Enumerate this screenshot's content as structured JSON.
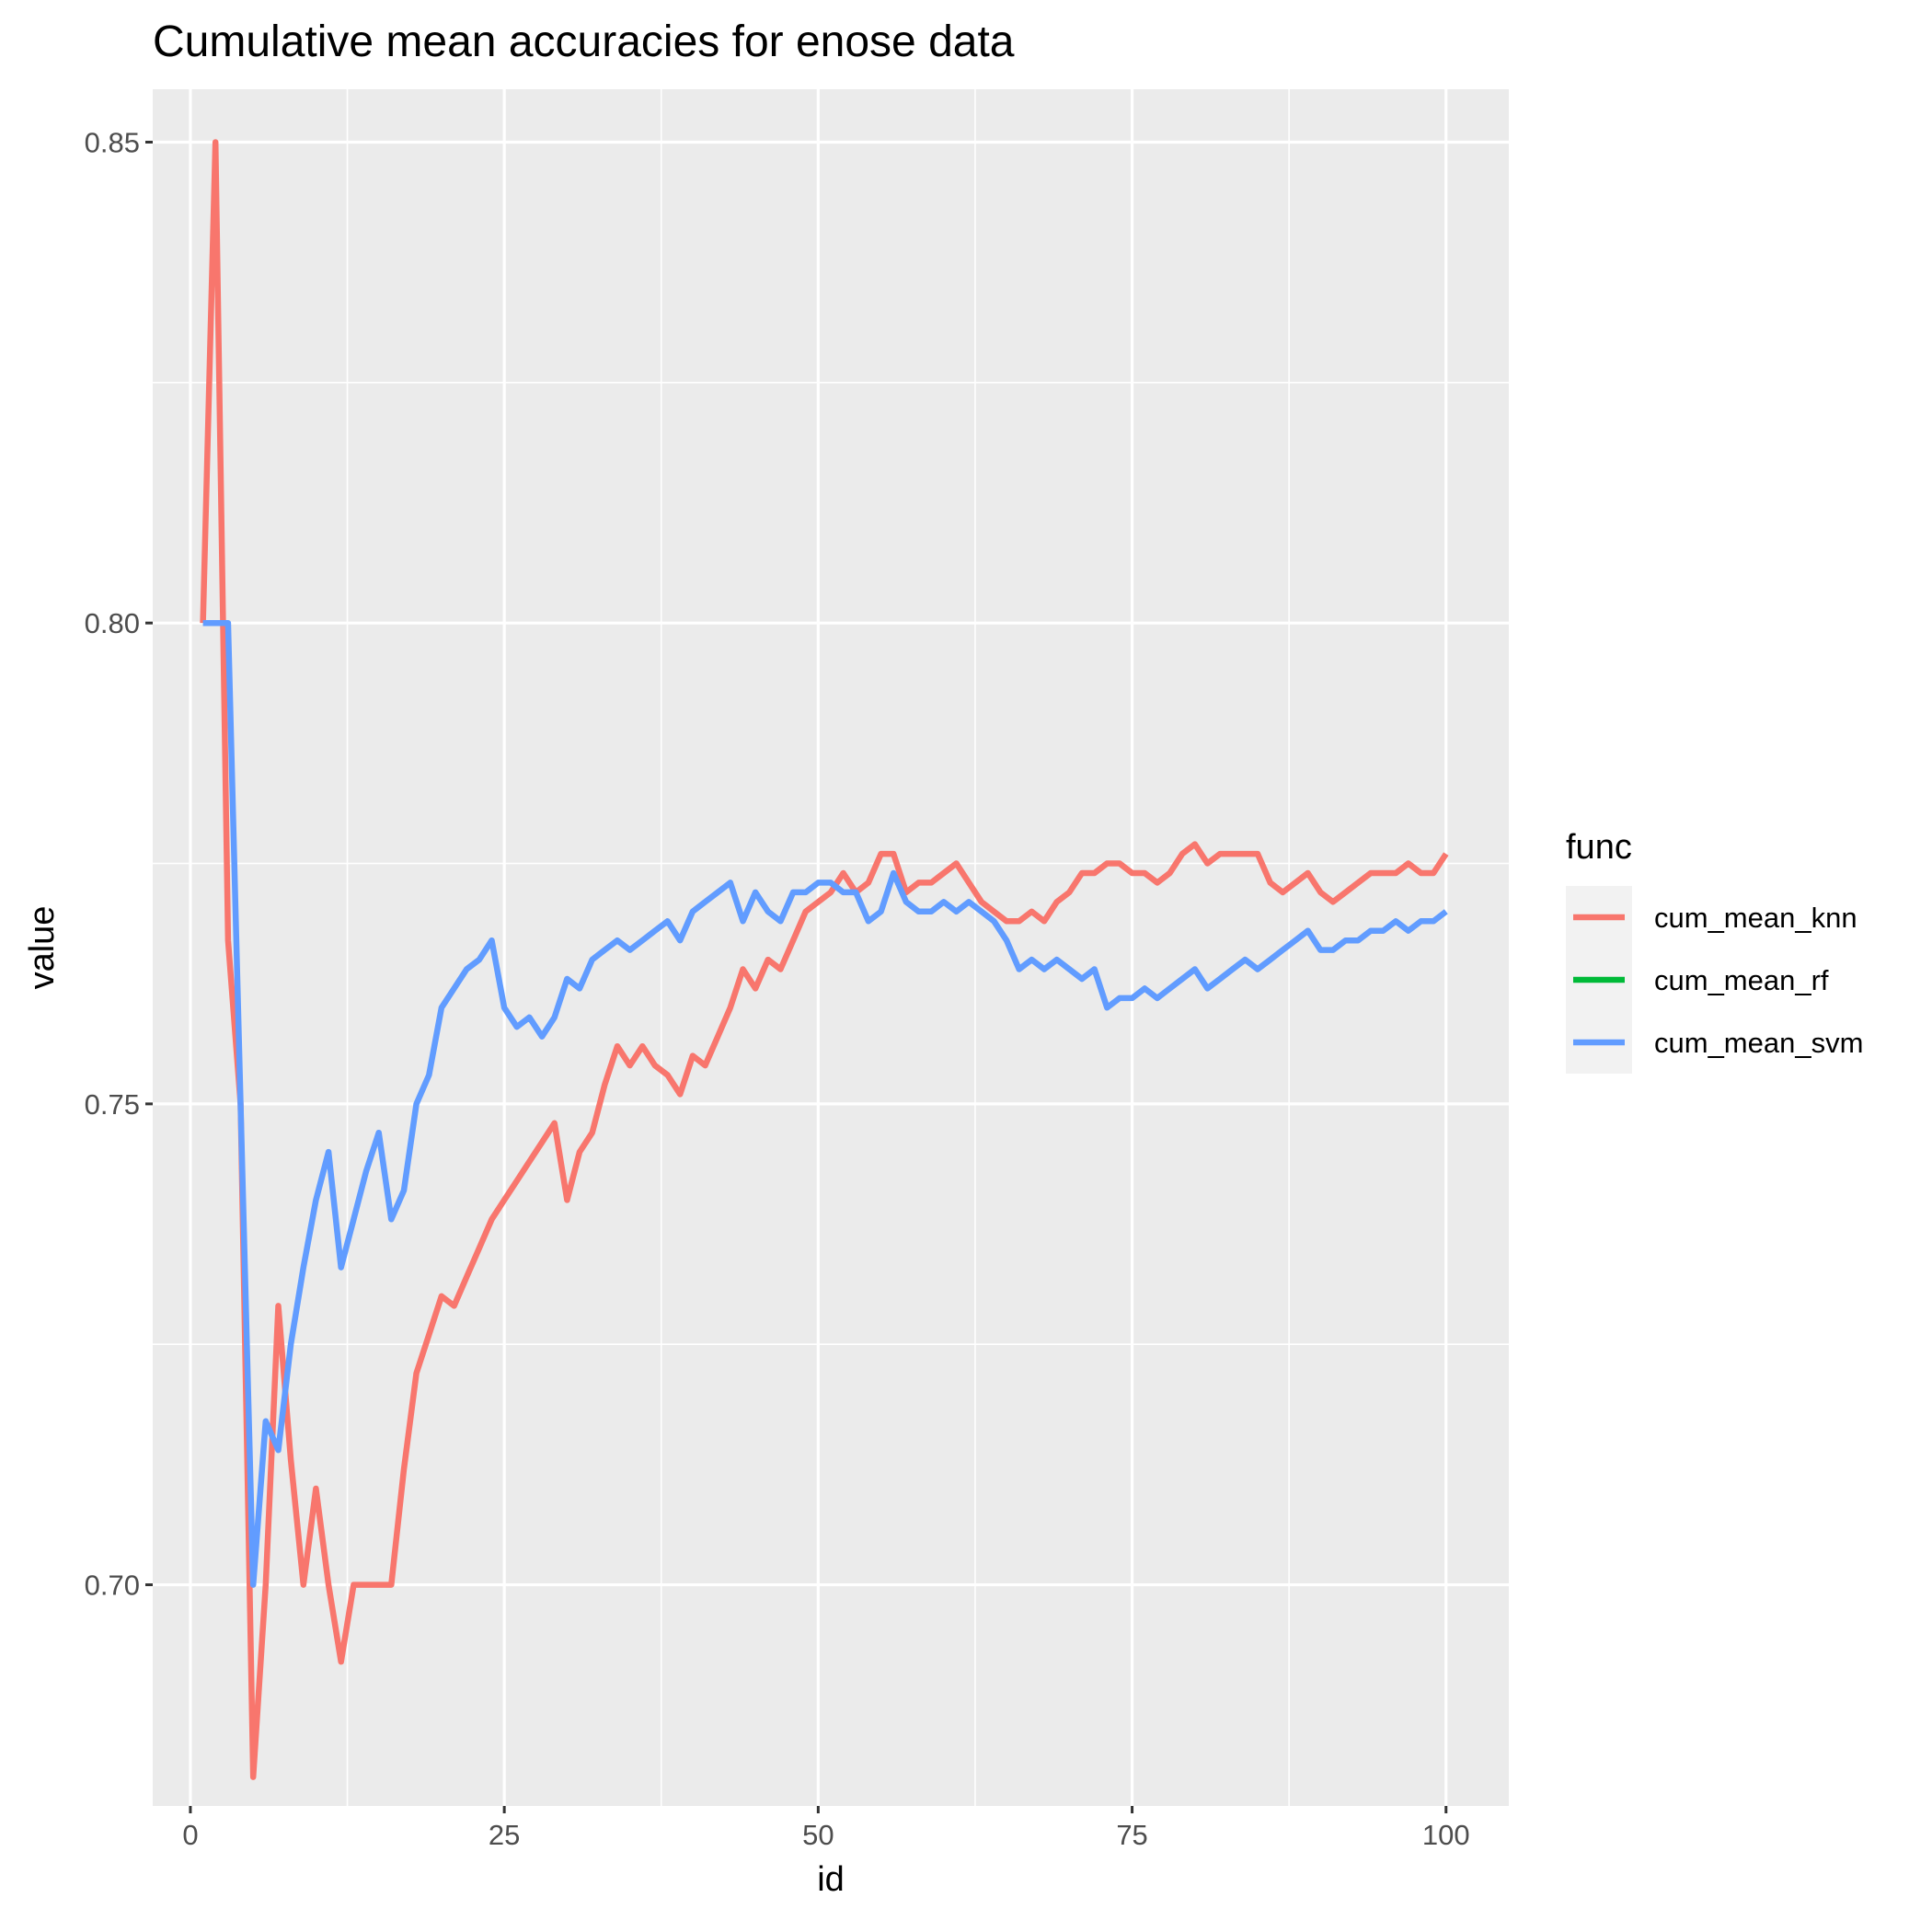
{
  "chart_data": {
    "type": "line",
    "title": "Cumulative mean accuracies for enose data",
    "xlabel": "id",
    "ylabel": "value",
    "xlim": [
      -3,
      105
    ],
    "ylim": [
      0.677,
      0.8555
    ],
    "x_ticks": [
      0,
      25,
      50,
      75,
      100
    ],
    "y_ticks": [
      0.7,
      0.75,
      0.8,
      0.85
    ],
    "x_tick_labels": [
      "0",
      "25",
      "50",
      "75",
      "100"
    ],
    "y_tick_labels": [
      "0.70",
      "0.75",
      "0.80",
      "0.85"
    ],
    "grid": true,
    "legend": {
      "title": "func",
      "position": "right",
      "entries": [
        "cum_mean_knn",
        "cum_mean_rf",
        "cum_mean_svm"
      ]
    },
    "series": [
      {
        "name": "cum_mean_knn",
        "color": "#F8766D",
        "x": [
          1,
          2,
          3,
          4,
          5,
          6,
          7,
          8,
          9,
          10,
          11,
          12,
          13,
          14,
          15,
          16,
          17,
          18,
          19,
          20,
          21,
          22,
          23,
          24,
          25,
          26,
          27,
          28,
          29,
          30,
          31,
          32,
          33,
          34,
          35,
          36,
          37,
          38,
          39,
          40,
          41,
          42,
          43,
          44,
          45,
          46,
          47,
          48,
          49,
          50,
          51,
          52,
          53,
          54,
          55,
          56,
          57,
          58,
          59,
          60,
          61,
          62,
          63,
          64,
          65,
          66,
          67,
          68,
          69,
          70,
          71,
          72,
          73,
          74,
          75,
          76,
          77,
          78,
          79,
          80,
          81,
          82,
          83,
          84,
          85,
          86,
          87,
          88,
          89,
          90,
          91,
          92,
          93,
          94,
          95,
          96,
          97,
          98,
          99,
          100
        ],
        "values": [
          0.8,
          0.85,
          0.767,
          0.75,
          0.68,
          0.7,
          0.729,
          0.713,
          0.7,
          0.71,
          0.7,
          0.692,
          0.7,
          0.7,
          0.7,
          0.7,
          0.712,
          0.722,
          0.726,
          0.73,
          0.729,
          0.732,
          0.735,
          0.738,
          0.74,
          0.742,
          0.744,
          0.746,
          0.748,
          0.74,
          0.745,
          0.747,
          0.752,
          0.756,
          0.754,
          0.756,
          0.754,
          0.753,
          0.751,
          0.755,
          0.754,
          0.757,
          0.76,
          0.764,
          0.762,
          0.765,
          0.764,
          0.767,
          0.77,
          0.771,
          0.772,
          0.774,
          0.772,
          0.773,
          0.776,
          0.776,
          0.772,
          0.773,
          0.773,
          0.774,
          0.775,
          0.773,
          0.771,
          0.77,
          0.769,
          0.769,
          0.77,
          0.769,
          0.771,
          0.772,
          0.774,
          0.774,
          0.775,
          0.775,
          0.774,
          0.774,
          0.773,
          0.774,
          0.776,
          0.777,
          0.775,
          0.776,
          0.776,
          0.776,
          0.776,
          0.773,
          0.772,
          0.773,
          0.774,
          0.772,
          0.771,
          0.772,
          0.773,
          0.774,
          0.774,
          0.774,
          0.775,
          0.774,
          0.774,
          0.776
        ]
      },
      {
        "name": "cum_mean_rf",
        "color": "#00BA38",
        "x": [],
        "values": []
      },
      {
        "name": "cum_mean_svm",
        "color": "#619CFF",
        "x": [
          1,
          2,
          3,
          4,
          5,
          6,
          7,
          8,
          9,
          10,
          11,
          12,
          13,
          14,
          15,
          16,
          17,
          18,
          19,
          20,
          21,
          22,
          23,
          24,
          25,
          26,
          27,
          28,
          29,
          30,
          31,
          32,
          33,
          34,
          35,
          36,
          37,
          38,
          39,
          40,
          41,
          42,
          43,
          44,
          45,
          46,
          47,
          48,
          49,
          50,
          51,
          52,
          53,
          54,
          55,
          56,
          57,
          58,
          59,
          60,
          61,
          62,
          63,
          64,
          65,
          66,
          67,
          68,
          69,
          70,
          71,
          72,
          73,
          74,
          75,
          76,
          77,
          78,
          79,
          80,
          81,
          82,
          83,
          84,
          85,
          86,
          87,
          88,
          89,
          90,
          91,
          92,
          93,
          94,
          95,
          96,
          97,
          98,
          99,
          100
        ],
        "values": [
          0.8,
          0.8,
          0.8,
          0.75,
          0.7,
          0.717,
          0.714,
          0.725,
          0.733,
          0.74,
          0.745,
          0.733,
          0.738,
          0.743,
          0.747,
          0.738,
          0.741,
          0.75,
          0.753,
          0.76,
          0.762,
          0.764,
          0.765,
          0.767,
          0.76,
          0.758,
          0.759,
          0.757,
          0.759,
          0.763,
          0.762,
          0.765,
          0.766,
          0.767,
          0.766,
          0.767,
          0.768,
          0.769,
          0.767,
          0.77,
          0.771,
          0.772,
          0.773,
          0.769,
          0.772,
          0.77,
          0.769,
          0.772,
          0.772,
          0.773,
          0.773,
          0.772,
          0.772,
          0.769,
          0.77,
          0.774,
          0.771,
          0.77,
          0.77,
          0.771,
          0.77,
          0.771,
          0.77,
          0.769,
          0.767,
          0.764,
          0.765,
          0.764,
          0.765,
          0.764,
          0.763,
          0.764,
          0.76,
          0.761,
          0.761,
          0.762,
          0.761,
          0.762,
          0.763,
          0.764,
          0.762,
          0.763,
          0.764,
          0.765,
          0.764,
          0.765,
          0.766,
          0.767,
          0.768,
          0.766,
          0.766,
          0.767,
          0.767,
          0.768,
          0.768,
          0.769,
          0.768,
          0.769,
          0.769,
          0.77
        ]
      }
    ]
  }
}
